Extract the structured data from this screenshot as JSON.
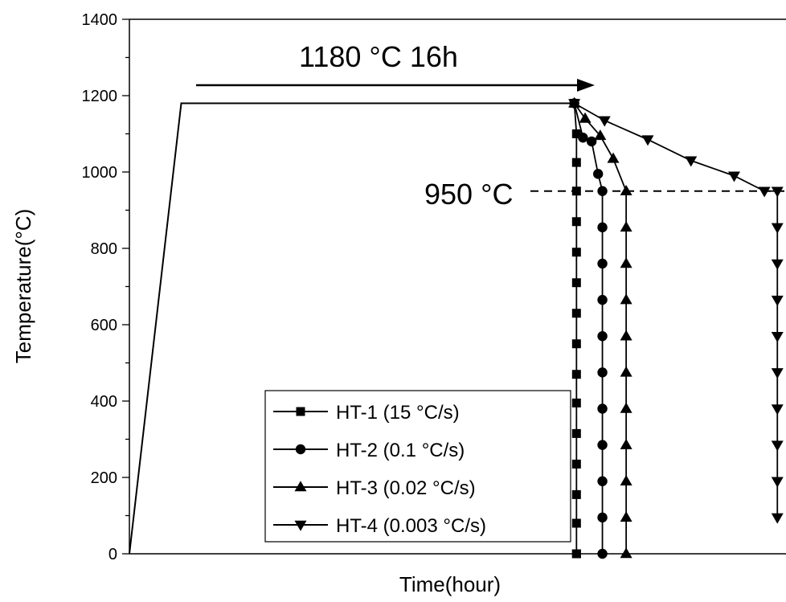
{
  "chart_data": {
    "type": "line",
    "xlabel": "Time(hour)",
    "ylabel": "Temperature(°C)",
    "ylim": [
      0,
      1400
    ],
    "yticks": [
      0,
      200,
      400,
      600,
      800,
      1000,
      1200,
      1400
    ],
    "y_minor_step": 100,
    "x_tick_labels": false,
    "grid": false,
    "legend_position": "bottom-center",
    "heating_profile": {
      "points": [
        [
          0,
          0
        ],
        [
          1.2,
          1180
        ],
        [
          10.3,
          1180
        ]
      ]
    },
    "annotations": [
      {
        "id": "hold",
        "text": "1180 °C 16h",
        "arrow": true
      },
      {
        "id": "target",
        "text": "950 °C",
        "y": 950,
        "dashed_line": true
      }
    ],
    "series": [
      {
        "name": "HT-1 (15 °C/s)",
        "marker": "square",
        "x": [
          10.3,
          10.35,
          10.35,
          10.35,
          10.35,
          10.35,
          10.35,
          10.35,
          10.35,
          10.35,
          10.35,
          10.35,
          10.35,
          10.35,
          10.35,
          10.35,
          10.35
        ],
        "y": [
          1180,
          1100,
          1025,
          950,
          870,
          790,
          710,
          630,
          550,
          470,
          395,
          315,
          235,
          155,
          80,
          0,
          0
        ]
      },
      {
        "name": "HT-2 (0.1 °C/s)",
        "marker": "circle",
        "x": [
          10.3,
          10.5,
          10.7,
          10.85,
          10.95,
          10.95,
          10.95,
          10.95,
          10.95,
          10.95,
          10.95,
          10.95,
          10.95,
          10.95,
          10.95
        ],
        "y": [
          1180,
          1090,
          1080,
          995,
          950,
          855,
          760,
          665,
          570,
          475,
          380,
          285,
          190,
          95,
          0
        ]
      },
      {
        "name": "HT-3 (0.02 °C/s)",
        "marker": "triangle-up",
        "x": [
          10.3,
          10.55,
          10.9,
          11.2,
          11.5,
          11.5,
          11.5,
          11.5,
          11.5,
          11.5,
          11.5,
          11.5,
          11.5,
          11.5,
          11.5
        ],
        "y": [
          1180,
          1140,
          1095,
          1035,
          950,
          855,
          760,
          665,
          570,
          475,
          380,
          285,
          190,
          95,
          0
        ]
      },
      {
        "name": "HT-4 (0.003 °C/s)",
        "marker": "triangle-down",
        "x": [
          10.3,
          11.0,
          12.0,
          13.0,
          14.0,
          14.7,
          15.0,
          15.0,
          15.0,
          15.0,
          15.0,
          15.0,
          15.0,
          15.0,
          15.0,
          15.0
        ],
        "y": [
          1180,
          1135,
          1085,
          1030,
          990,
          950,
          950,
          855,
          760,
          665,
          570,
          475,
          380,
          285,
          190,
          95
        ]
      }
    ],
    "xlim": [
      0,
      15.2
    ]
  }
}
